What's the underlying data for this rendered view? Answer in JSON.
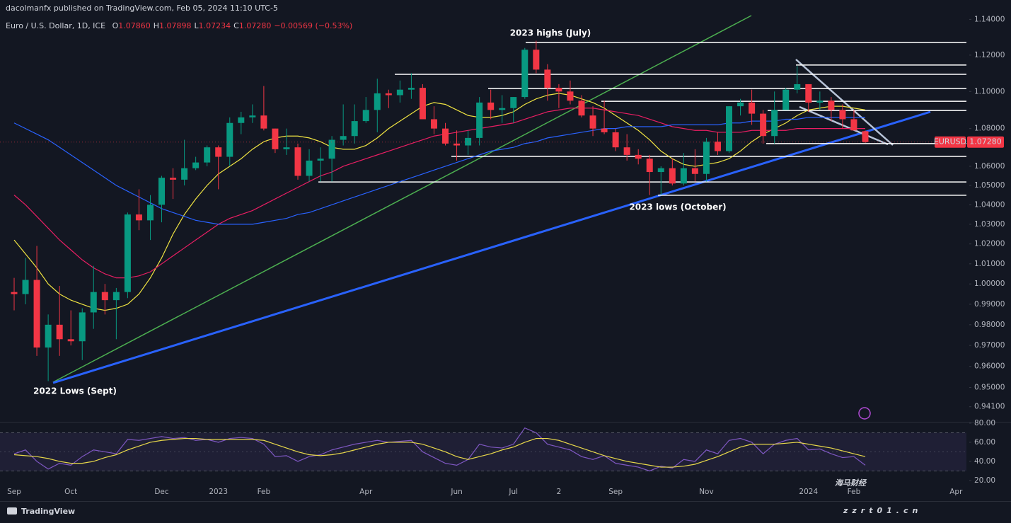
{
  "header": {
    "publisher": "dacolmanfx published on TradingView.com, Feb 05, 2024 11:10 UTC-5",
    "symbol": "Euro / U.S. Dollar, 1D, ICE",
    "ohlc": [
      {
        "key": "O",
        "value": "1.07860"
      },
      {
        "key": "H",
        "value": "1.07898"
      },
      {
        "key": "L",
        "value": "1.07234"
      },
      {
        "key": "C",
        "value": "1.07280"
      }
    ],
    "change": "−0.00569 (−0.53%)"
  },
  "footer": {
    "logo": "TradingView"
  },
  "watermark": {
    "title": "海马财经",
    "site": "zzrt01.cn"
  },
  "chart_data": [
    {
      "type": "candlestick",
      "log_scale": true,
      "up_color": "#089981",
      "down_color": "#f23645",
      "categories": [
        "Sep",
        null,
        null,
        null,
        null,
        "Oct",
        null,
        null,
        null,
        null,
        null,
        null,
        null,
        "Dec",
        null,
        null,
        null,
        null,
        "2023",
        null,
        null,
        null,
        "Feb",
        null,
        null,
        null,
        null,
        null,
        null,
        null,
        null,
        "Apr",
        null,
        null,
        null,
        null,
        null,
        null,
        null,
        "Jun",
        null,
        null,
        null,
        null,
        "Jul",
        null,
        null,
        null,
        "2",
        null,
        null,
        null,
        null,
        "Sep",
        null,
        null,
        null,
        null,
        null,
        null,
        null,
        "Nov",
        null,
        null,
        null,
        null,
        null,
        null,
        null,
        null,
        "2024",
        null,
        null,
        null,
        "Feb",
        null,
        null,
        null,
        null,
        null,
        null,
        null,
        null,
        "Apr"
      ],
      "open": [
        0.996,
        0.995,
        1.002,
        0.969,
        0.98,
        0.973,
        0.972,
        0.986,
        0.996,
        0.992,
        0.996,
        1.035,
        1.032,
        1.04,
        1.054,
        1.053,
        1.059,
        1.062,
        1.07,
        1.065,
        1.083,
        1.086,
        1.087,
        1.08,
        1.069,
        1.07,
        1.055,
        1.063,
        1.064,
        1.074,
        1.076,
        1.084,
        1.09,
        1.099,
        1.098,
        1.101,
        1.102,
        1.085,
        1.08,
        1.072,
        1.071,
        1.075,
        1.094,
        1.09,
        1.091,
        1.097,
        1.123,
        1.112,
        1.102,
        1.1,
        1.095,
        1.087,
        1.08,
        1.078,
        1.07,
        1.066,
        1.064,
        1.057,
        1.059,
        1.051,
        1.059,
        1.056,
        1.073,
        1.068,
        1.092,
        1.094,
        1.088,
        1.076,
        1.09,
        1.101,
        1.104,
        1.094,
        1.095,
        1.09,
        1.085,
        1.0786,
        null,
        null,
        null,
        null,
        null,
        null,
        null,
        null
      ],
      "high": [
        1.003,
        1.013,
        1.019,
        0.985,
        0.999,
        0.987,
        0.988,
        1.009,
        1.0,
        0.998,
        1.036,
        1.048,
        1.045,
        1.055,
        1.059,
        1.074,
        1.065,
        1.071,
        1.071,
        1.086,
        1.089,
        1.093,
        1.103,
        1.08,
        1.08,
        1.072,
        1.069,
        1.07,
        1.076,
        1.093,
        1.093,
        1.097,
        1.107,
        1.101,
        1.106,
        1.11,
        1.104,
        1.092,
        1.083,
        1.079,
        1.079,
        1.097,
        1.101,
        1.098,
        1.097,
        1.124,
        1.128,
        1.115,
        1.104,
        1.106,
        1.098,
        1.092,
        1.095,
        1.08,
        1.077,
        1.069,
        1.066,
        1.06,
        1.064,
        1.067,
        1.069,
        1.075,
        1.078,
        1.092,
        1.096,
        1.101,
        1.09,
        1.1,
        1.102,
        1.114,
        1.104,
        1.1,
        1.097,
        1.093,
        1.09,
        1.07898,
        null,
        null,
        null,
        null,
        null,
        null,
        null,
        null
      ],
      "low": [
        0.987,
        0.99,
        0.965,
        0.953,
        0.965,
        0.97,
        0.963,
        0.978,
        0.985,
        0.973,
        0.993,
        1.027,
        1.022,
        1.031,
        1.043,
        1.05,
        1.058,
        1.06,
        1.048,
        1.06,
        1.077,
        1.083,
        1.079,
        1.067,
        1.066,
        1.053,
        1.052,
        1.052,
        1.052,
        1.071,
        1.072,
        1.083,
        1.078,
        1.091,
        1.094,
        1.096,
        1.087,
        1.077,
        1.071,
        1.063,
        1.066,
        1.071,
        1.085,
        1.083,
        1.083,
        1.096,
        1.11,
        1.095,
        1.091,
        1.093,
        1.086,
        1.076,
        1.077,
        1.068,
        1.063,
        1.061,
        1.045,
        1.045,
        1.05,
        1.05,
        1.052,
        1.052,
        1.066,
        1.067,
        1.087,
        1.082,
        1.072,
        1.072,
        1.09,
        1.099,
        1.089,
        1.09,
        1.084,
        1.08,
        1.079,
        1.07234,
        null,
        null,
        null,
        null,
        null,
        null,
        null,
        null
      ],
      "close": [
        0.995,
        1.002,
        0.969,
        0.98,
        0.973,
        0.972,
        0.986,
        0.996,
        0.992,
        0.996,
        1.035,
        1.032,
        1.04,
        1.054,
        1.053,
        1.059,
        1.062,
        1.07,
        1.065,
        1.083,
        1.086,
        1.087,
        1.08,
        1.069,
        1.07,
        1.055,
        1.063,
        1.064,
        1.074,
        1.076,
        1.084,
        1.09,
        1.099,
        1.098,
        1.101,
        1.102,
        1.085,
        1.08,
        1.072,
        1.071,
        1.075,
        1.094,
        1.09,
        1.091,
        1.097,
        1.123,
        1.112,
        1.102,
        1.1,
        1.095,
        1.087,
        1.08,
        1.078,
        1.07,
        1.066,
        1.064,
        1.057,
        1.059,
        1.051,
        1.059,
        1.056,
        1.073,
        1.068,
        1.092,
        1.094,
        1.088,
        1.076,
        1.09,
        1.101,
        1.104,
        1.094,
        1.095,
        1.09,
        1.085,
        1.079,
        1.0728,
        null,
        null,
        null,
        null,
        null,
        null,
        null,
        null
      ],
      "series": [
        {
          "color": "#f0e442",
          "values": [
            1.022,
            1.015,
            1.008,
            1.0,
            0.995,
            0.992,
            0.99,
            0.988,
            0.987,
            0.988,
            0.99,
            0.995,
            1.003,
            1.013,
            1.025,
            1.035,
            1.043,
            1.05,
            1.056,
            1.06,
            1.064,
            1.069,
            1.073,
            1.075,
            1.076,
            1.076,
            1.075,
            1.073,
            1.07,
            1.069,
            1.069,
            1.071,
            1.075,
            1.08,
            1.084,
            1.088,
            1.092,
            1.094,
            1.093,
            1.09,
            1.087,
            1.086,
            1.086,
            1.087,
            1.089,
            1.093,
            1.096,
            1.098,
            1.099,
            1.098,
            1.096,
            1.094,
            1.091,
            1.087,
            1.083,
            1.079,
            1.074,
            1.068,
            1.064,
            1.061,
            1.06,
            1.061,
            1.062,
            1.064,
            1.068,
            1.073,
            1.077,
            1.08,
            1.083,
            1.087,
            1.09,
            1.091,
            1.092,
            1.092,
            1.091,
            1.09,
            null,
            null,
            null,
            null,
            null,
            null,
            null,
            null
          ]
        },
        {
          "color": "#e91e63",
          "values": [
            1.045,
            1.04,
            1.034,
            1.028,
            1.022,
            1.017,
            1.012,
            1.008,
            1.005,
            1.003,
            1.003,
            1.004,
            1.006,
            1.01,
            1.014,
            1.018,
            1.022,
            1.026,
            1.03,
            1.033,
            1.035,
            1.037,
            1.04,
            1.043,
            1.046,
            1.049,
            1.052,
            1.055,
            1.057,
            1.06,
            1.062,
            1.064,
            1.066,
            1.068,
            1.07,
            1.072,
            1.074,
            1.076,
            1.077,
            1.078,
            1.079,
            1.08,
            1.081,
            1.082,
            1.083,
            1.085,
            1.087,
            1.089,
            1.09,
            1.091,
            1.091,
            1.091,
            1.09,
            1.089,
            1.088,
            1.087,
            1.085,
            1.083,
            1.081,
            1.08,
            1.079,
            1.079,
            1.078,
            1.078,
            1.078,
            1.079,
            1.079,
            1.079,
            1.079,
            1.08,
            1.08,
            1.08,
            1.08,
            1.08,
            1.08,
            1.08,
            null,
            null,
            null,
            null,
            null,
            null,
            null,
            null
          ]
        },
        {
          "color": "#2962ff",
          "values": [
            1.083,
            1.08,
            1.077,
            1.074,
            1.07,
            1.066,
            1.062,
            1.058,
            1.054,
            1.05,
            1.047,
            1.044,
            1.041,
            1.038,
            1.036,
            1.034,
            1.032,
            1.031,
            1.03,
            1.03,
            1.03,
            1.03,
            1.031,
            1.032,
            1.033,
            1.035,
            1.036,
            1.038,
            1.04,
            1.042,
            1.044,
            1.046,
            1.048,
            1.05,
            1.052,
            1.054,
            1.056,
            1.058,
            1.06,
            1.062,
            1.064,
            1.066,
            1.068,
            1.069,
            1.07,
            1.072,
            1.073,
            1.075,
            1.076,
            1.077,
            1.078,
            1.079,
            1.08,
            1.08,
            1.081,
            1.081,
            1.081,
            1.081,
            1.082,
            1.082,
            1.082,
            1.082,
            1.082,
            1.083,
            1.083,
            1.084,
            1.084,
            1.084,
            1.085,
            1.085,
            1.086,
            1.086,
            1.086,
            1.086,
            1.086,
            1.086,
            null,
            null,
            null,
            null,
            null,
            null,
            null,
            null
          ]
        }
      ],
      "levels": [
        1.127,
        1.1145,
        1.1094,
        1.1016,
        1.0947,
        1.0897,
        1.072,
        1.0652,
        1.0518,
        1.0449
      ],
      "price_tag": {
        "symbol": "EURUSD",
        "value": 1.0728,
        "label": "1.07280"
      },
      "annotations": [
        "2023 highs (July)",
        "2023 lows (October)",
        "2022 Lows (Sept)"
      ],
      "ylim": [
        0.934,
        1.151
      ],
      "yticks": [
        {
          "value": 1.14,
          "label": "1.14000"
        },
        {
          "value": 1.12,
          "label": "1.12000"
        },
        {
          "value": 1.1,
          "label": "1.10000"
        },
        {
          "value": 1.08,
          "label": "1.08000"
        },
        {
          "value": 1.06,
          "label": "1.06000"
        },
        {
          "value": 1.05,
          "label": "1.05000"
        },
        {
          "value": 1.04,
          "label": "1.04000"
        },
        {
          "value": 1.03,
          "label": "1.03000"
        },
        {
          "value": 1.02,
          "label": "1.02000"
        },
        {
          "value": 1.01,
          "label": "1.01000"
        },
        {
          "value": 1.0,
          "label": "1.00000"
        },
        {
          "value": 0.99,
          "label": "0.99000"
        },
        {
          "value": 0.98,
          "label": "0.98000"
        },
        {
          "value": 0.97,
          "label": "0.97000"
        },
        {
          "value": 0.96,
          "label": "0.96000"
        },
        {
          "value": 0.95,
          "label": "0.95000"
        },
        {
          "value": 0.941,
          "label": "0.94100"
        }
      ],
      "grid": false
    },
    {
      "type": "line",
      "series": [
        {
          "color": "#7e57c2",
          "values": [
            48,
            52,
            40,
            32,
            38,
            36,
            45,
            52,
            50,
            48,
            63,
            62,
            64,
            66,
            64,
            65,
            62,
            63,
            60,
            64,
            65,
            64,
            58,
            45,
            46,
            40,
            45,
            47,
            52,
            55,
            58,
            60,
            62,
            60,
            61,
            62,
            50,
            44,
            38,
            36,
            42,
            58,
            55,
            54,
            58,
            75,
            70,
            58,
            55,
            52,
            45,
            42,
            46,
            38,
            36,
            34,
            30,
            35,
            33,
            42,
            40,
            52,
            48,
            62,
            64,
            60,
            48,
            58,
            62,
            64,
            52,
            53,
            48,
            44,
            45,
            36,
            null,
            null,
            null,
            null,
            null,
            null,
            null,
            null
          ]
        },
        {
          "color": "#e8d84a",
          "values": [
            47,
            46,
            45,
            43,
            40,
            38,
            38,
            40,
            44,
            47,
            52,
            56,
            60,
            62,
            63,
            64,
            64,
            63,
            63,
            63,
            63,
            63,
            62,
            58,
            54,
            50,
            47,
            46,
            47,
            49,
            52,
            55,
            58,
            60,
            60,
            60,
            58,
            54,
            50,
            45,
            42,
            45,
            48,
            52,
            55,
            60,
            64,
            64,
            62,
            58,
            54,
            50,
            46,
            43,
            40,
            38,
            36,
            34,
            34,
            35,
            37,
            41,
            45,
            50,
            55,
            58,
            58,
            58,
            59,
            60,
            58,
            56,
            54,
            51,
            48,
            45,
            null,
            null,
            null,
            null,
            null,
            null,
            null,
            null
          ]
        }
      ],
      "band": [
        30,
        70
      ],
      "midline": 50,
      "ylim": [
        17,
        80.7
      ],
      "yticks": [
        {
          "value": 80,
          "label": "80.00"
        },
        {
          "value": 60,
          "label": "60.00"
        },
        {
          "value": 40,
          "label": "40.00"
        },
        {
          "value": 20,
          "label": "20.00"
        }
      ]
    }
  ]
}
